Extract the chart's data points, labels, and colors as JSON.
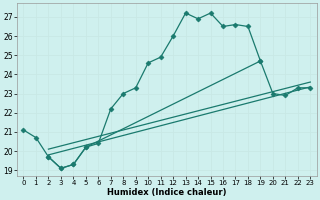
{
  "xlabel": "Humidex (Indice chaleur)",
  "bg_color": "#cff0ee",
  "grid_color": "#c8e8e5",
  "line_color": "#1a7a6e",
  "xlim": [
    -0.5,
    23.5
  ],
  "ylim": [
    18.7,
    27.7
  ],
  "yticks": [
    19,
    20,
    21,
    22,
    23,
    24,
    25,
    26,
    27
  ],
  "xticks": [
    0,
    1,
    2,
    3,
    4,
    5,
    6,
    7,
    8,
    9,
    10,
    11,
    12,
    13,
    14,
    15,
    16,
    17,
    18,
    19,
    20,
    21,
    22,
    23
  ],
  "curve1_x": [
    0,
    1,
    2,
    3,
    4,
    5,
    6,
    7,
    8,
    9,
    10,
    11,
    12,
    13,
    14,
    15,
    16,
    17,
    18,
    19
  ],
  "curve1_y": [
    21.1,
    20.7,
    19.7,
    19.1,
    19.3,
    20.2,
    20.4,
    22.2,
    23.0,
    23.3,
    24.6,
    24.9,
    26.0,
    27.2,
    26.9,
    27.2,
    26.5,
    26.6,
    26.5,
    24.7
  ],
  "curve2_x": [
    2,
    3,
    4,
    5,
    19,
    20,
    21,
    22,
    23
  ],
  "curve2_y": [
    19.7,
    19.1,
    19.3,
    20.2,
    24.7,
    23.0,
    22.9,
    23.3,
    23.3
  ],
  "line1_x": [
    2,
    23
  ],
  "line1_y": [
    19.8,
    23.35
  ],
  "line2_x": [
    2,
    23
  ],
  "line2_y": [
    20.1,
    23.6
  ]
}
